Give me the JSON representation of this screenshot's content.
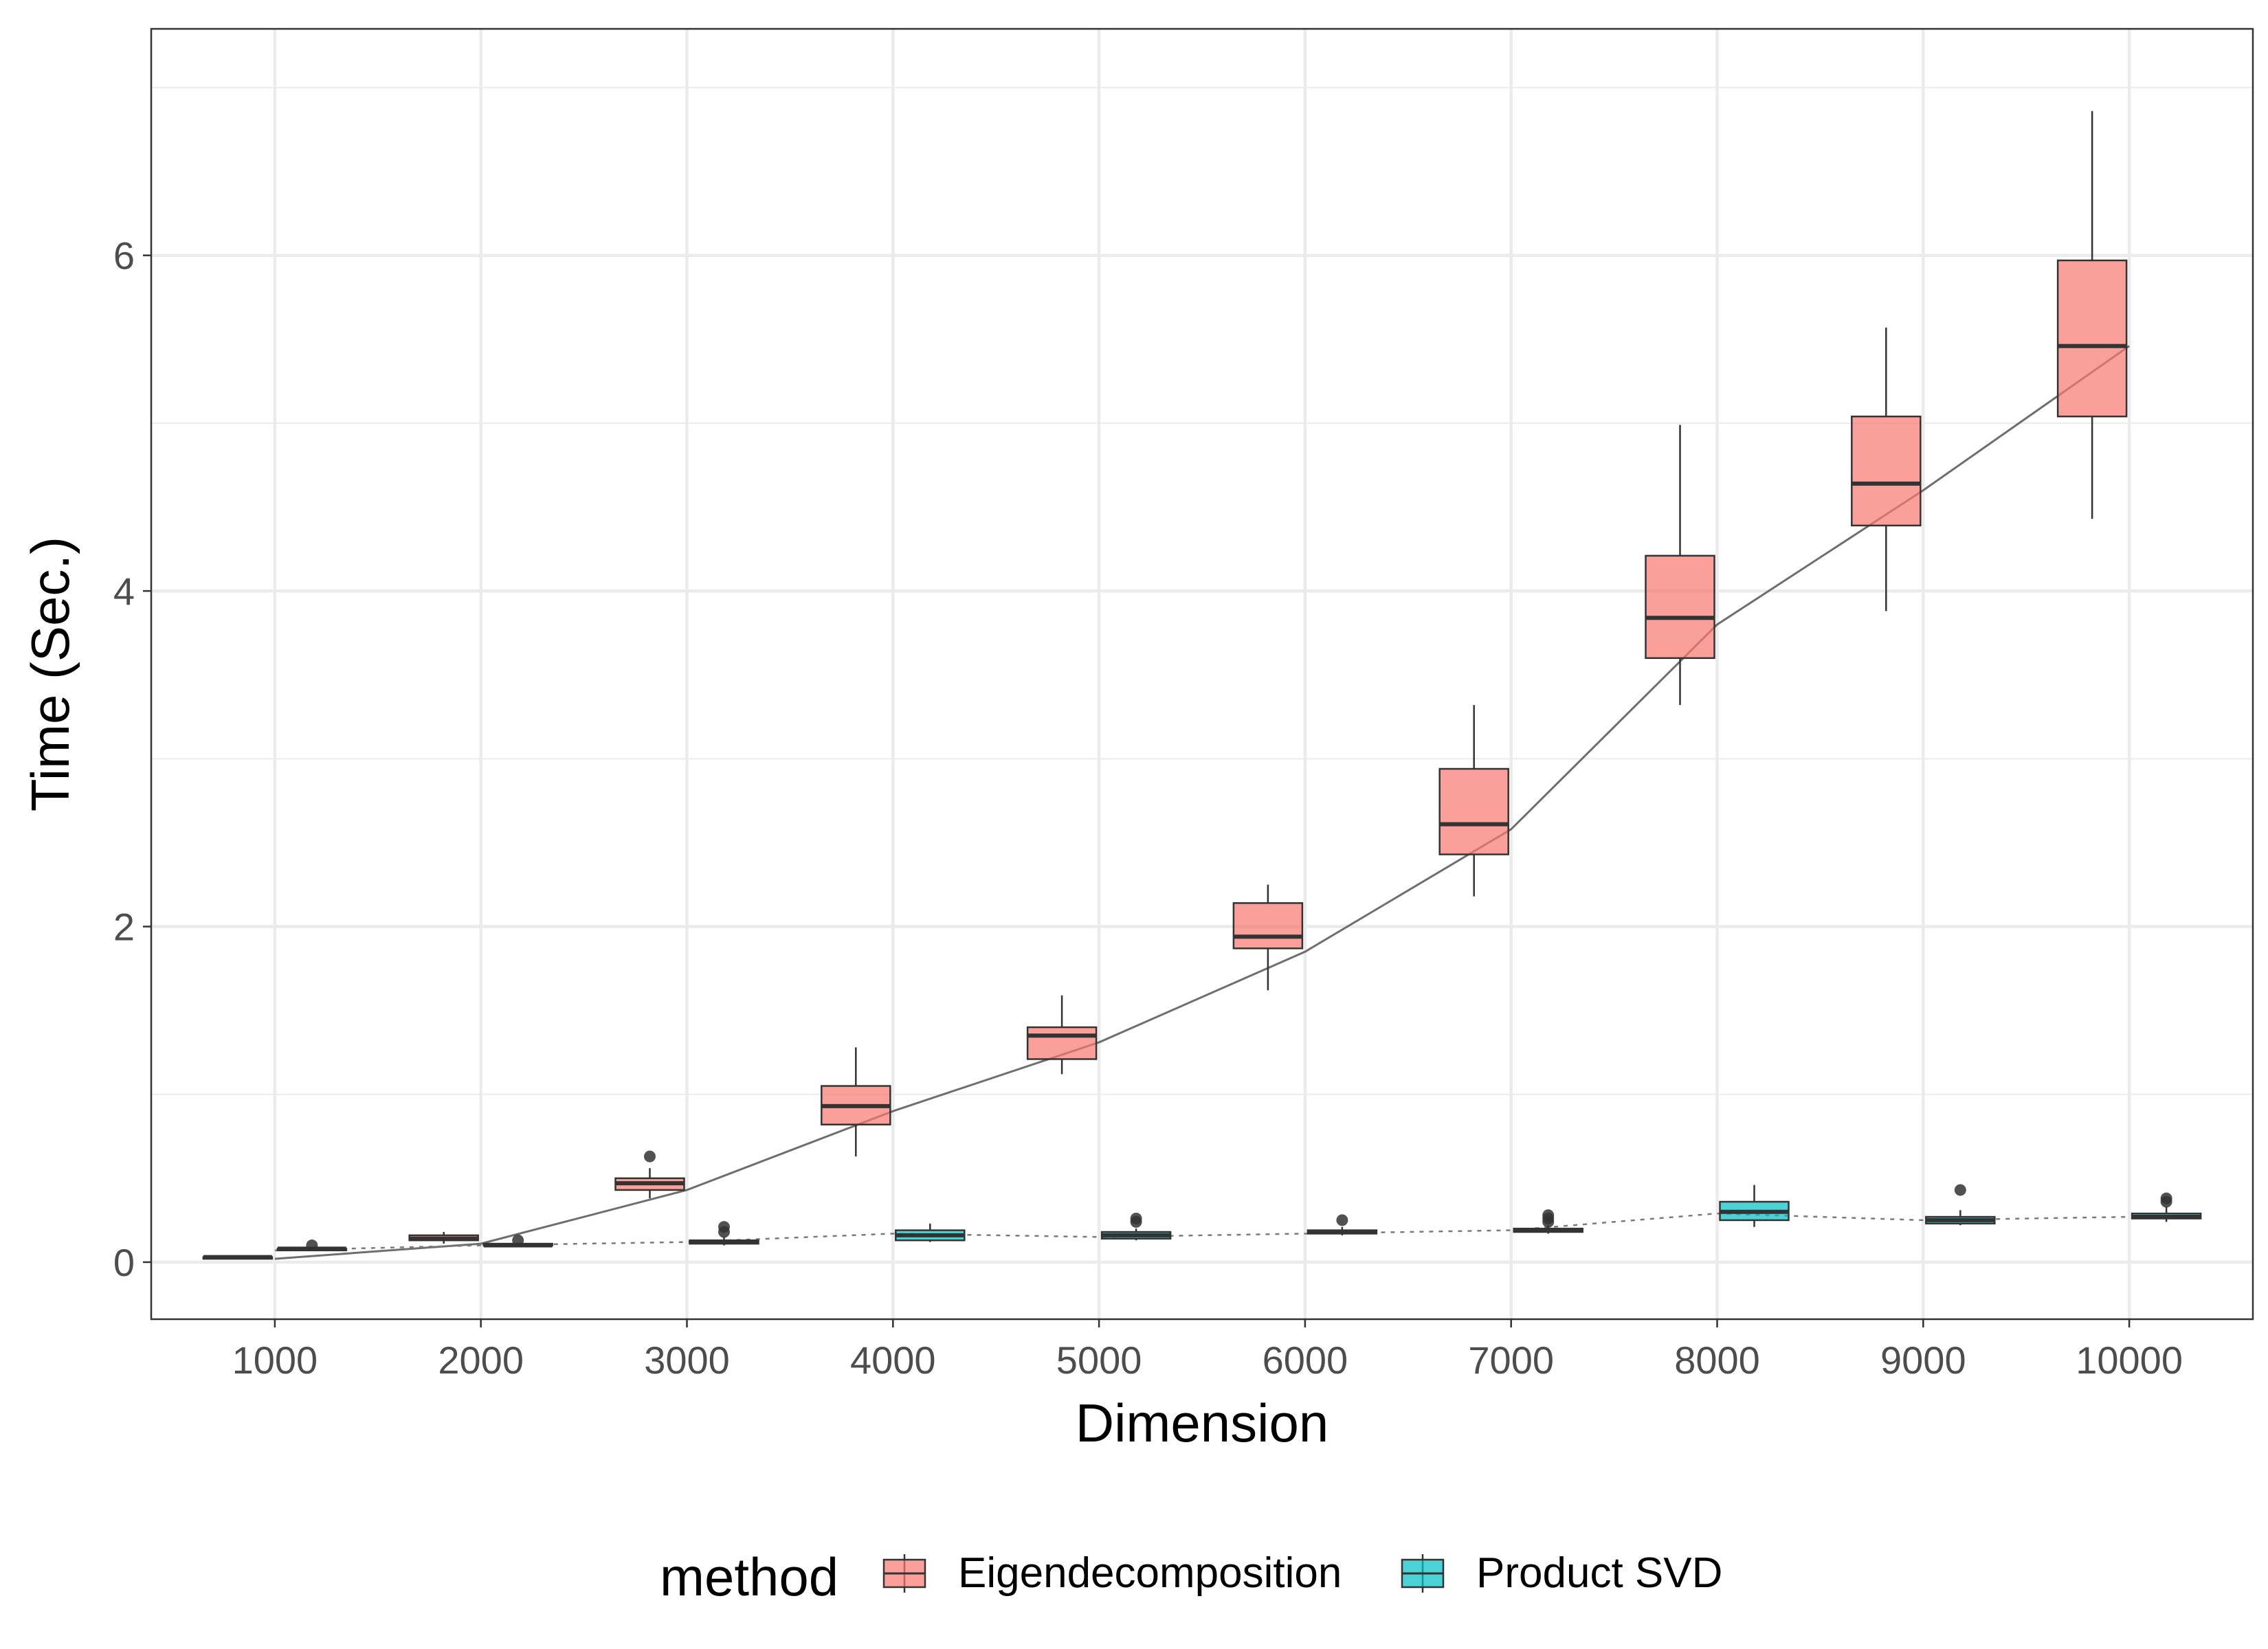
{
  "chart_data": {
    "type": "box",
    "xlabel": "Dimension",
    "ylabel": "Time (Sec.)",
    "xlim": [
      400,
      10600
    ],
    "ylim": [
      -0.34,
      7.35
    ],
    "x_ticks": [
      1000,
      2000,
      3000,
      4000,
      5000,
      6000,
      7000,
      8000,
      9000,
      10000
    ],
    "x_tick_labels": [
      "1000",
      "2000",
      "3000",
      "4000",
      "5000",
      "6000",
      "7000",
      "8000",
      "9000",
      "10000"
    ],
    "y_ticks": [
      0,
      2,
      4,
      6
    ],
    "y_tick_labels": [
      "0",
      "2",
      "4",
      "6"
    ],
    "y_minor_ticks": [
      1,
      3,
      5,
      7
    ],
    "grid": true,
    "legend": {
      "title": "method",
      "position": "bottom",
      "entries": [
        "Eigendecomposition",
        "Product SVD"
      ]
    },
    "series": [
      {
        "name": "Eigendecomposition",
        "color": "#F8766D",
        "line_style": "solid",
        "boxes": [
          {
            "x": 1000,
            "min": 0.02,
            "q1": 0.02,
            "median": 0.03,
            "q3": 0.03,
            "max": 0.03,
            "outliers": []
          },
          {
            "x": 2000,
            "min": 0.11,
            "q1": 0.13,
            "median": 0.14,
            "q3": 0.16,
            "max": 0.18,
            "outliers": []
          },
          {
            "x": 3000,
            "min": 0.38,
            "q1": 0.43,
            "median": 0.47,
            "q3": 0.5,
            "max": 0.56,
            "outliers": [
              0.63
            ]
          },
          {
            "x": 4000,
            "min": 0.63,
            "q1": 0.82,
            "median": 0.93,
            "q3": 1.05,
            "max": 1.28,
            "outliers": []
          },
          {
            "x": 5000,
            "min": 1.12,
            "q1": 1.21,
            "median": 1.35,
            "q3": 1.4,
            "max": 1.59,
            "outliers": []
          },
          {
            "x": 6000,
            "min": 1.62,
            "q1": 1.87,
            "median": 1.94,
            "q3": 2.14,
            "max": 2.25,
            "outliers": []
          },
          {
            "x": 7000,
            "min": 2.18,
            "q1": 2.43,
            "median": 2.61,
            "q3": 2.94,
            "max": 3.32,
            "outliers": []
          },
          {
            "x": 8000,
            "min": 3.32,
            "q1": 3.6,
            "median": 3.84,
            "q3": 4.21,
            "max": 4.99,
            "outliers": []
          },
          {
            "x": 9000,
            "min": 3.88,
            "q1": 4.39,
            "median": 4.64,
            "q3": 5.04,
            "max": 5.57,
            "outliers": []
          },
          {
            "x": 10000,
            "min": 4.43,
            "q1": 5.04,
            "median": 5.46,
            "q3": 5.97,
            "max": 6.86,
            "outliers": []
          }
        ],
        "trend": [
          0.02,
          0.11,
          0.43,
          0.9,
          1.31,
          1.85,
          2.58,
          3.8,
          4.6,
          5.46
        ]
      },
      {
        "name": "Product SVD",
        "color": "#00BFC4",
        "line_style": "dotted",
        "boxes": [
          {
            "x": 1000,
            "min": 0.07,
            "q1": 0.07,
            "median": 0.08,
            "q3": 0.08,
            "max": 0.09,
            "outliers": [
              0.1
            ]
          },
          {
            "x": 2000,
            "min": 0.09,
            "q1": 0.1,
            "median": 0.1,
            "q3": 0.11,
            "max": 0.11,
            "outliers": [
              0.13
            ]
          },
          {
            "x": 3000,
            "min": 0.1,
            "q1": 0.11,
            "median": 0.12,
            "q3": 0.13,
            "max": 0.15,
            "outliers": [
              0.18,
              0.21
            ]
          },
          {
            "x": 4000,
            "min": 0.12,
            "q1": 0.13,
            "median": 0.16,
            "q3": 0.19,
            "max": 0.23,
            "outliers": []
          },
          {
            "x": 5000,
            "min": 0.13,
            "q1": 0.14,
            "median": 0.16,
            "q3": 0.18,
            "max": 0.2,
            "outliers": [
              0.24,
              0.26
            ]
          },
          {
            "x": 6000,
            "min": 0.16,
            "q1": 0.17,
            "median": 0.18,
            "q3": 0.19,
            "max": 0.21,
            "outliers": [
              0.25
            ]
          },
          {
            "x": 7000,
            "min": 0.17,
            "q1": 0.18,
            "median": 0.19,
            "q3": 0.2,
            "max": 0.22,
            "outliers": [
              0.24,
              0.26,
              0.28
            ]
          },
          {
            "x": 8000,
            "min": 0.21,
            "q1": 0.25,
            "median": 0.3,
            "q3": 0.36,
            "max": 0.46,
            "outliers": []
          },
          {
            "x": 9000,
            "min": 0.22,
            "q1": 0.23,
            "median": 0.25,
            "q3": 0.27,
            "max": 0.31,
            "outliers": [
              0.43
            ]
          },
          {
            "x": 10000,
            "min": 0.24,
            "q1": 0.26,
            "median": 0.27,
            "q3": 0.29,
            "max": 0.33,
            "outliers": [
              0.36,
              0.38
            ]
          }
        ],
        "trend": [
          0.07,
          0.1,
          0.12,
          0.17,
          0.15,
          0.17,
          0.19,
          0.29,
          0.25,
          0.27
        ]
      }
    ]
  }
}
